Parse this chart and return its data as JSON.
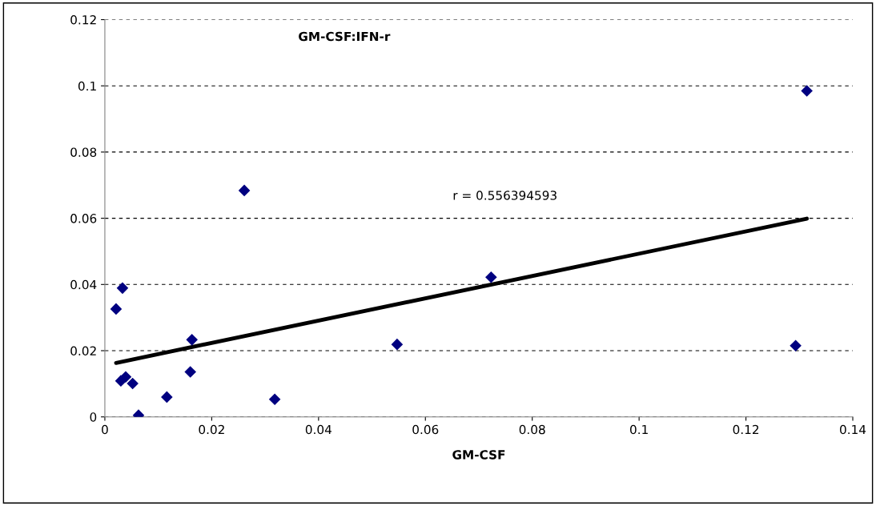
{
  "chart_data": {
    "type": "scatter",
    "title": "GM-CSF:IFN-r",
    "xlabel": "GM-CSF",
    "annotations": [
      "r = 0.556394593"
    ],
    "series": [
      {
        "color": "#000080",
        "marker": "diamond",
        "x": [
          0.0033,
          0.0021,
          0.0163,
          0.016,
          0.003,
          0.0039,
          0.0052,
          0.0116,
          0.0063,
          0.0318,
          0.0261,
          0.0547,
          0.0723,
          0.1293,
          0.1314
        ],
        "values": [
          0.0389,
          0.0326,
          0.0233,
          0.0136,
          0.0109,
          0.0121,
          0.0101,
          0.006,
          0.0005,
          0.0053,
          0.0684,
          0.0219,
          0.0422,
          0.0215,
          0.0985
        ]
      },
      {
        "type": "line",
        "color": "#000000",
        "x": [
          0.0021,
          0.1314
        ],
        "values": [
          0.0163,
          0.0599
        ]
      }
    ],
    "xlim": [
      0,
      0.14
    ],
    "xticks": [
      0,
      0.02,
      0.04,
      0.06,
      0.08,
      0.1,
      0.12,
      0.14
    ],
    "ylim": [
      0,
      0.12
    ],
    "yticks": [
      0,
      0.02,
      0.04,
      0.06,
      0.08,
      0.1,
      0.12
    ],
    "grid": "y",
    "legend": false
  }
}
